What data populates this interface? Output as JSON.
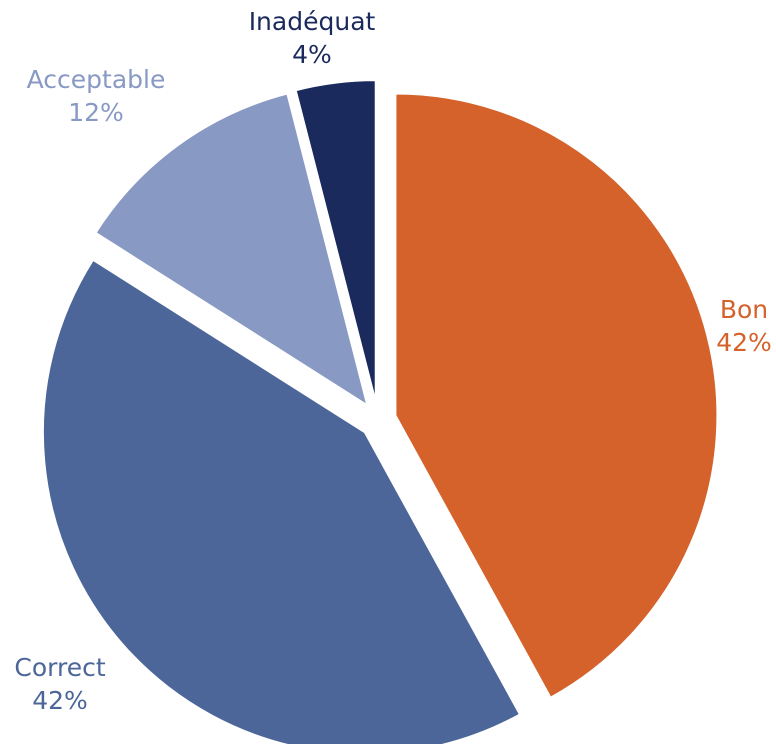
{
  "chart_data": {
    "type": "pie",
    "title": "",
    "exploded": true,
    "slices": [
      {
        "label": "Bon",
        "value": 42,
        "value_label": "42%",
        "color": "#D4622A"
      },
      {
        "label": "Correct",
        "value": 42,
        "value_label": "42%",
        "color": "#4C6699"
      },
      {
        "label": "Acceptable",
        "value": 12,
        "value_label": "12%",
        "color": "#8899C4"
      },
      {
        "label": "Inadéquat",
        "value": 4,
        "value_label": "4%",
        "color": "#1B2A5C"
      }
    ]
  }
}
